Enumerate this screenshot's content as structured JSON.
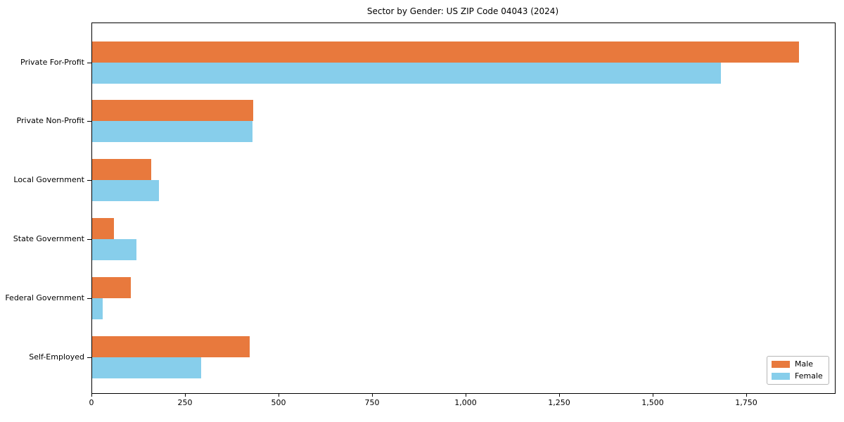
{
  "title": "Sector by Gender: US ZIP Code 04043 (2024)",
  "chart_data": {
    "type": "bar",
    "orientation": "horizontal",
    "title": "Sector by Gender: US ZIP Code 04043 (2024)",
    "categories": [
      "Private For-Profit",
      "Private Non-Profit",
      "Local Government",
      "State Government",
      "Federal Government",
      "Self-Employed"
    ],
    "series": [
      {
        "name": "Male",
        "color": "#E8793D",
        "values": [
          1890,
          430,
          157,
          58,
          104,
          421
        ]
      },
      {
        "name": "Female",
        "color": "#87CEEB",
        "values": [
          1680,
          428,
          179,
          119,
          28,
          291
        ]
      }
    ],
    "xlim": [
      0,
      1985
    ],
    "xticks": [
      0,
      250,
      500,
      750,
      1000,
      1250,
      1500,
      1750
    ],
    "xtick_labels": [
      "0",
      "250",
      "500",
      "750",
      "1,000",
      "1,250",
      "1,500",
      "1,750"
    ],
    "grid": false,
    "legend_position": "lower-right",
    "axis_color": "#000000",
    "background_color": "#FFFFFF"
  }
}
